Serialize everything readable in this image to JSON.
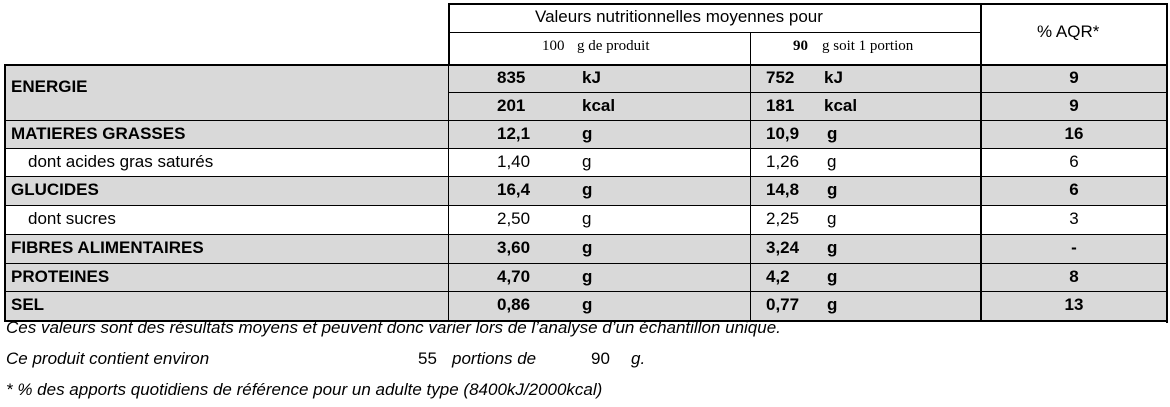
{
  "header": {
    "title": "Valeurs nutritionnelles moyennes pour",
    "col1_qty": "100",
    "col1_text": "g de produit",
    "col2_qty": "90",
    "col2_text": "g soit 1 portion",
    "aqr": "% AQR*"
  },
  "rows": [
    {
      "label": "ENERGIE",
      "v100": "835",
      "u100": "kJ",
      "vp": "752",
      "up": "kJ",
      "aqr": "9"
    },
    {
      "label": "",
      "v100": "201",
      "u100": "kcal",
      "vp": "181",
      "up": "kcal",
      "aqr": "9"
    },
    {
      "label": "MATIERES GRASSES",
      "v100": "12,1",
      "u100": "g",
      "vp": "10,9",
      "up": "g",
      "aqr": "16"
    },
    {
      "label": "dont acides gras saturés",
      "v100": "1,40",
      "u100": "g",
      "vp": "1,26",
      "up": "g",
      "aqr": "6"
    },
    {
      "label": "GLUCIDES",
      "v100": "16,4",
      "u100": "g",
      "vp": "14,8",
      "up": "g",
      "aqr": "6"
    },
    {
      "label": "dont sucres",
      "v100": "2,50",
      "u100": "g",
      "vp": "2,25",
      "up": "g",
      "aqr": "3"
    },
    {
      "label": "FIBRES ALIMENTAIRES",
      "v100": "3,60",
      "u100": "g",
      "vp": "3,24",
      "up": "g",
      "aqr": "-"
    },
    {
      "label": "PROTEINES",
      "v100": "4,70",
      "u100": "g",
      "vp": "4,2",
      "up": "g",
      "aqr": "8"
    },
    {
      "label": "SEL",
      "v100": "0,86",
      "u100": "g",
      "vp": "0,77",
      "up": "g",
      "aqr": "13"
    }
  ],
  "footer": {
    "line1": "Ces valeurs sont des résultats moyens et peuvent donc varier lors de l’analyse d’un échantillon unique.",
    "line2_a": "Ce produit contient environ",
    "line2_num": "55",
    "line2_b": "portions de",
    "line2_qty": "90",
    "line2_unit": "g.",
    "line3": "* % des apports quotidiens de référence pour un adulte type (8400kJ/2000kcal)"
  },
  "colors": {
    "shade": "#d9d9d9",
    "line": "#000000"
  }
}
